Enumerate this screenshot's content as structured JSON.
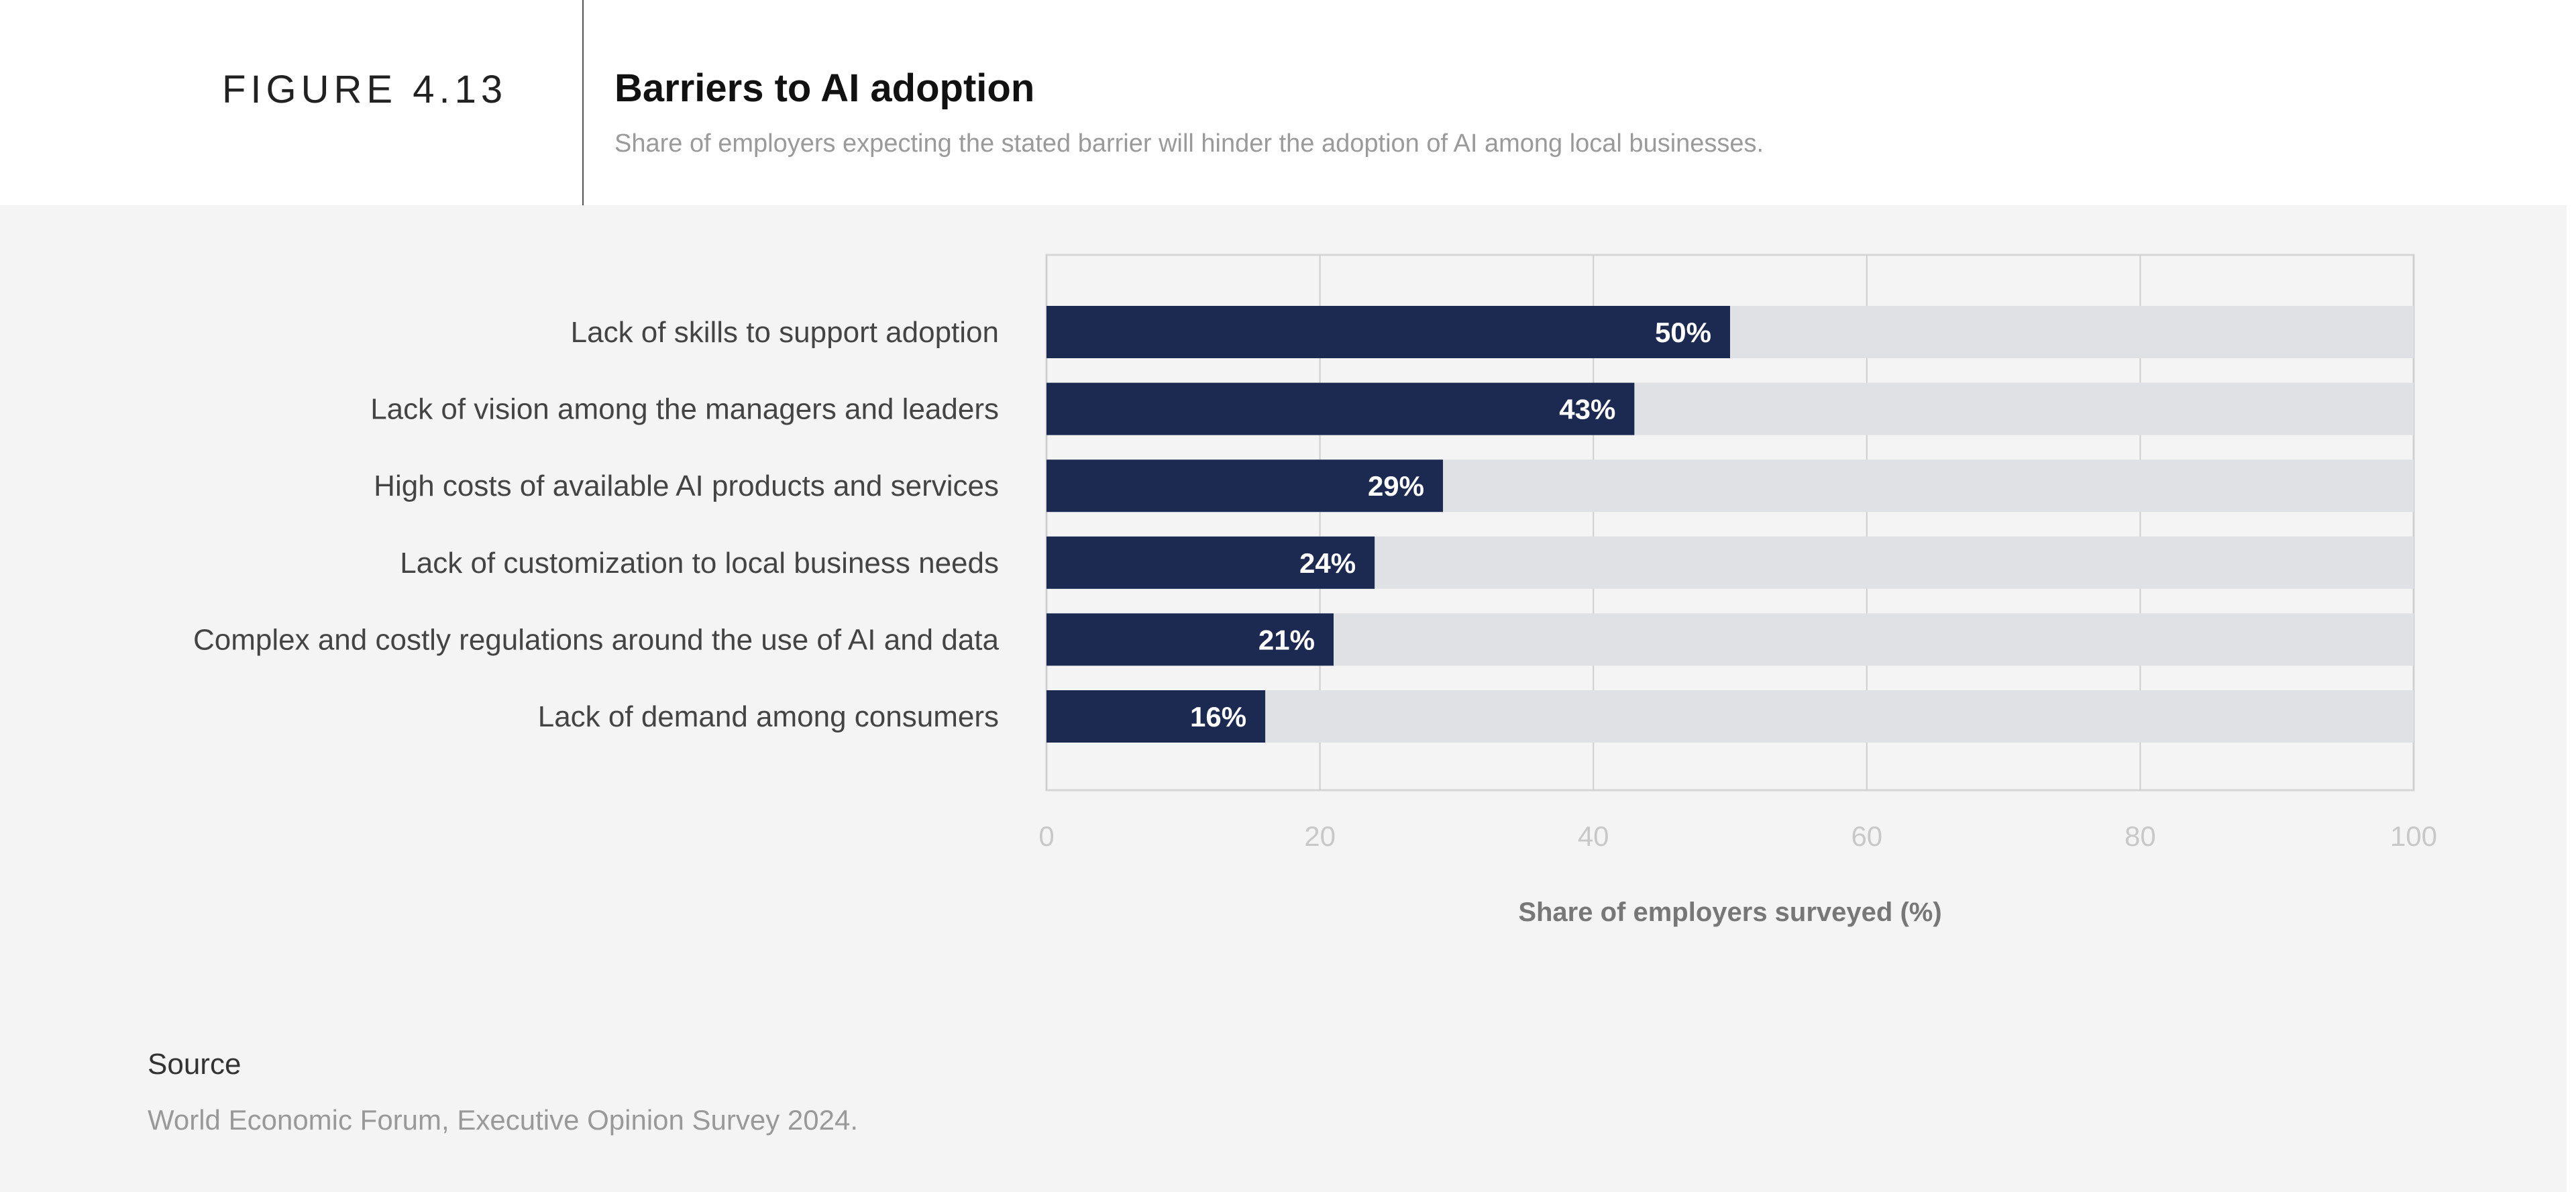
{
  "header": {
    "figure_label": "FIGURE 4.13",
    "title": "Barriers to AI adoption",
    "subtitle": "Share of employers expecting the stated barrier will hinder the adoption of AI among local businesses."
  },
  "chart_data": {
    "type": "bar",
    "orientation": "horizontal",
    "title": "Barriers to AI adoption",
    "subtitle": "Share of employers expecting the stated barrier will hinder the adoption of AI among local businesses.",
    "categories": [
      "Lack of skills to support adoption",
      "Lack of vision among the managers and leaders",
      "High costs of available AI products and services",
      "Lack of customization to local business needs",
      "Complex and costly regulations around the use of AI and data",
      "Lack of demand among consumers"
    ],
    "values": [
      50,
      43,
      29,
      24,
      21,
      16
    ],
    "data_labels": [
      "50%",
      "43%",
      "29%",
      "24%",
      "21%",
      "16%"
    ],
    "xlabel": "Share of employers surveyed (%)",
    "ylabel": "",
    "xlim": [
      0,
      100
    ],
    "xticks": [
      "0",
      "20",
      "40",
      "60",
      "80",
      "100"
    ],
    "grid": true,
    "colors": {
      "bar": "#1c2a52",
      "track": "#dfe1e4",
      "grid": "#cfcfcf"
    }
  },
  "footer": {
    "source_label": "Source",
    "source_text": "World Economic Forum, Executive Opinion Survey 2024."
  }
}
